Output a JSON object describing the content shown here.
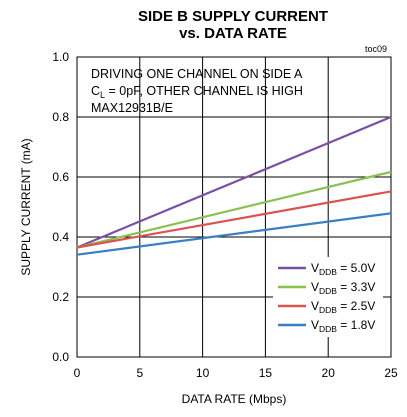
{
  "chart_data": {
    "type": "line",
    "title": [
      "SIDE B SUPPLY CURRENT",
      "vs. DATA RATE"
    ],
    "figure_code": "toc09",
    "xlabel": "DATA RATE (Mbps)",
    "ylabel": "SUPPLY CURRENT (mA)",
    "xlim": [
      0,
      25
    ],
    "ylim": [
      0.0,
      1.0
    ],
    "x_ticks": [
      0,
      5,
      10,
      15,
      20,
      25
    ],
    "y_ticks": [
      0.0,
      0.2,
      0.4,
      0.6,
      0.8,
      1.0
    ],
    "x_tick_labels": [
      "0",
      "5",
      "10",
      "15",
      "20",
      "25"
    ],
    "y_tick_labels": [
      "0.0",
      "0.2",
      "0.4",
      "0.6",
      "0.8",
      "1.0"
    ],
    "grid": true,
    "annotation": [
      {
        "text": "DRIVING ONE CHANNEL ON SIDE A"
      },
      {
        "main": "C",
        "sub": "L",
        "rest": " = 0pF, OTHER CHANNEL IS HIGH"
      },
      {
        "text": "MAX12931B/E"
      }
    ],
    "legend_position": "bottom-right",
    "series": [
      {
        "name": "V_DDB = 5.0V",
        "label_main": "V",
        "label_sub": "DDB",
        "label_rest": " = 5.0V",
        "color": "#7b4fa6",
        "x": [
          0,
          25
        ],
        "y": [
          0.365,
          0.8
        ]
      },
      {
        "name": "V_DDB = 3.3V",
        "label_main": "V",
        "label_sub": "DDB",
        "label_rest": " = 3.3V",
        "color": "#8cc152",
        "x": [
          0,
          25
        ],
        "y": [
          0.365,
          0.617
        ]
      },
      {
        "name": "V_DDB = 2.5V",
        "label_main": "V",
        "label_sub": "DDB",
        "label_rest": " = 2.5V",
        "color": "#d9534f",
        "x": [
          0,
          25
        ],
        "y": [
          0.365,
          0.552
        ]
      },
      {
        "name": "V_DDB = 1.8V",
        "label_main": "V",
        "label_sub": "DDB",
        "label_rest": " = 1.8V",
        "color": "#3a7fc4",
        "x": [
          0,
          25
        ],
        "y": [
          0.341,
          0.479
        ]
      }
    ]
  }
}
